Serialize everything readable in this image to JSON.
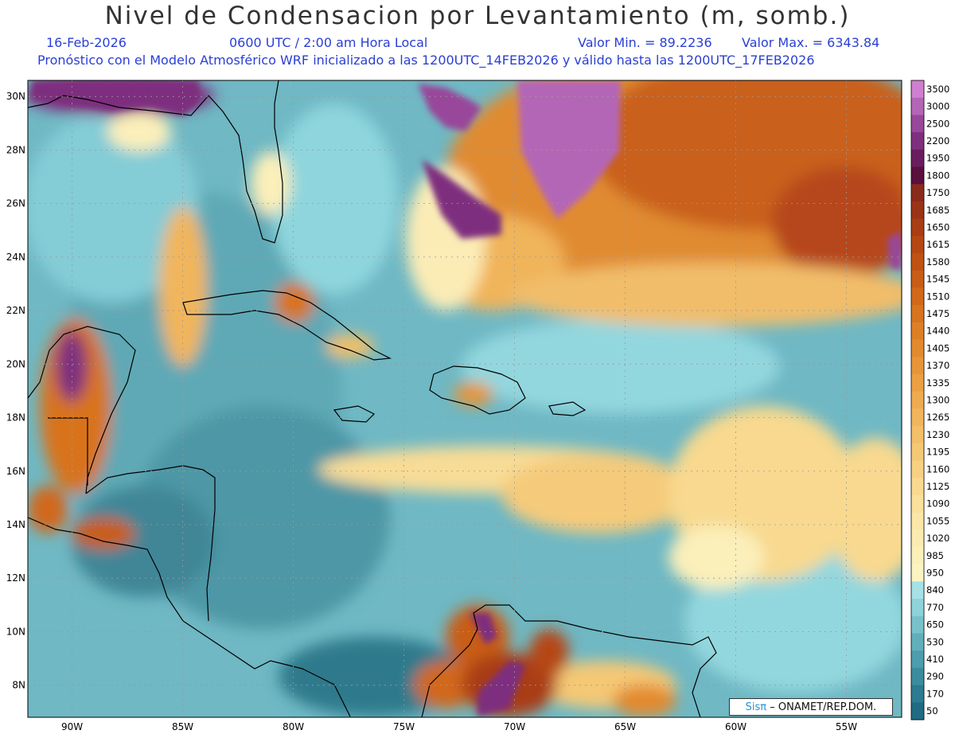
{
  "header": {
    "title": "Nivel de Condensacion por Levantamiento (m, somb.)",
    "date": "16-Feb-2026",
    "time": "0600 UTC / 2:00 am Hora Local",
    "min_label": "Valor Min. = 89.2236",
    "max_label": "Valor Max. = 6343.84",
    "forecast_info": "Pronóstico con el Modelo Atmosférico WRF inicializado a las 1200UTC_14FEB2026 y válido hasta las  1200UTC_17FEB2026"
  },
  "map": {
    "lon_labels": [
      "90W",
      "85W",
      "80W",
      "75W",
      "70W",
      "65W",
      "60W",
      "55W"
    ],
    "lat_labels": [
      "30N",
      "28N",
      "26N",
      "24N",
      "22N",
      "20N",
      "18N",
      "16N",
      "14N",
      "12N",
      "10N",
      "8N"
    ],
    "lon_values": [
      -90,
      -85,
      -80,
      -75,
      -70,
      -65,
      -60,
      -55
    ],
    "lat_values": [
      30,
      28,
      26,
      24,
      22,
      20,
      18,
      16,
      14,
      12,
      10,
      8
    ],
    "extent": {
      "lon_min": -92,
      "lon_max": -52.5,
      "lat_min": 6.8,
      "lat_max": 30.6
    },
    "grid": true
  },
  "colorbar": {
    "labels": [
      "3500",
      "3000",
      "2500",
      "2200",
      "1950",
      "1800",
      "1750",
      "1685",
      "1650",
      "1615",
      "1580",
      "1545",
      "1510",
      "1475",
      "1440",
      "1405",
      "1370",
      "1335",
      "1300",
      "1265",
      "1230",
      "1195",
      "1160",
      "1125",
      "1090",
      "1055",
      "1020",
      "985",
      "950",
      "840",
      "770",
      "650",
      "530",
      "410",
      "290",
      "170",
      "50"
    ],
    "colors": [
      "#d07fd0",
      "#b466b6",
      "#98479a",
      "#7e2f7e",
      "#6a1d5e",
      "#5a0f3c",
      "#8a2a1c",
      "#9b3316",
      "#a93d14",
      "#b54713",
      "#bf5213",
      "#c85d16",
      "#d1681a",
      "#d8731f",
      "#de7f26",
      "#e38a2e",
      "#e79538",
      "#eba043",
      "#eeab4f",
      "#f1b55b",
      "#f3bf68",
      "#f5c875",
      "#f7d182",
      "#f8d98f",
      "#f9e09b",
      "#fae6a6",
      "#fbebb1",
      "#fbefba",
      "#fbf3c3",
      "#a6e1e5",
      "#8fd2d9",
      "#78c1cb",
      "#62afbc",
      "#4d9dae",
      "#3b8c9f",
      "#2c7b90",
      "#1f6b82"
    ]
  },
  "credit": {
    "logo": "Sisπ",
    "text": "– ONAMET/REP.DOM."
  }
}
